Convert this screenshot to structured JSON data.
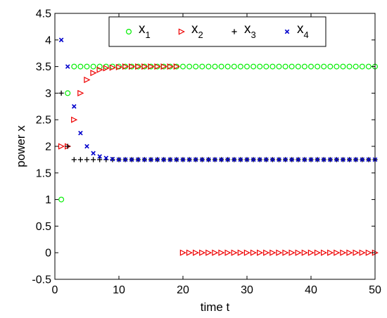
{
  "chart_data": {
    "type": "scatter",
    "xlabel": "time t",
    "ylabel": "power x",
    "xlim": [
      0,
      50
    ],
    "ylim": [
      -0.5,
      4.5
    ],
    "xticks": [
      0,
      10,
      20,
      30,
      40,
      50
    ],
    "yticks": [
      -0.5,
      0,
      0.5,
      1,
      1.5,
      2,
      2.5,
      3,
      3.5,
      4,
      4.5
    ],
    "grid": false,
    "legend_position": "top",
    "series": [
      {
        "name": "x",
        "subscript": "1",
        "marker": "circle",
        "color": "#00ee00",
        "x": [
          1,
          2,
          3,
          4,
          5,
          6,
          7,
          8,
          9,
          10,
          11,
          12,
          13,
          14,
          15,
          16,
          17,
          18,
          19,
          20,
          21,
          22,
          23,
          24,
          25,
          26,
          27,
          28,
          29,
          30,
          31,
          32,
          33,
          34,
          35,
          36,
          37,
          38,
          39,
          40,
          41,
          42,
          43,
          44,
          45,
          46,
          47,
          48,
          49,
          50
        ],
        "y": [
          1,
          3,
          3.5,
          3.5,
          3.5,
          3.5,
          3.5,
          3.5,
          3.5,
          3.5,
          3.5,
          3.5,
          3.5,
          3.5,
          3.5,
          3.5,
          3.5,
          3.5,
          3.5,
          3.5,
          3.5,
          3.5,
          3.5,
          3.5,
          3.5,
          3.5,
          3.5,
          3.5,
          3.5,
          3.5,
          3.5,
          3.5,
          3.5,
          3.5,
          3.5,
          3.5,
          3.5,
          3.5,
          3.5,
          3.5,
          3.5,
          3.5,
          3.5,
          3.5,
          3.5,
          3.5,
          3.5,
          3.5,
          3.5,
          3.5
        ]
      },
      {
        "name": "x",
        "subscript": "2",
        "marker": "triangle-right",
        "color": "#ee0000",
        "x": [
          1,
          2,
          3,
          4,
          5,
          6,
          7,
          8,
          9,
          10,
          11,
          12,
          13,
          14,
          15,
          16,
          17,
          18,
          19,
          20,
          21,
          22,
          23,
          24,
          25,
          26,
          27,
          28,
          29,
          30,
          31,
          32,
          33,
          34,
          35,
          36,
          37,
          38,
          39,
          40,
          41,
          42,
          43,
          44,
          45,
          46,
          47,
          48,
          49,
          50
        ],
        "y": [
          2,
          2,
          2.5,
          3,
          3.25,
          3.38,
          3.44,
          3.47,
          3.48,
          3.49,
          3.5,
          3.5,
          3.5,
          3.5,
          3.5,
          3.5,
          3.5,
          3.5,
          3.5,
          0,
          0,
          0,
          0,
          0,
          0,
          0,
          0,
          0,
          0,
          0,
          0,
          0,
          0,
          0,
          0,
          0,
          0,
          0,
          0,
          0,
          0,
          0,
          0,
          0,
          0,
          0,
          0,
          0,
          0,
          0
        ]
      },
      {
        "name": "x",
        "subscript": "3",
        "marker": "plus",
        "color": "#000000",
        "x": [
          1,
          2,
          3,
          4,
          5,
          6,
          7,
          8,
          9,
          10,
          11,
          12,
          13,
          14,
          15,
          16,
          17,
          18,
          19,
          20,
          21,
          22,
          23,
          24,
          25,
          26,
          27,
          28,
          29,
          30,
          31,
          32,
          33,
          34,
          35,
          36,
          37,
          38,
          39,
          40,
          41,
          42,
          43,
          44,
          45,
          46,
          47,
          48,
          49,
          50
        ],
        "y": [
          3,
          2,
          1.75,
          1.75,
          1.75,
          1.75,
          1.75,
          1.75,
          1.75,
          1.75,
          1.75,
          1.75,
          1.75,
          1.75,
          1.75,
          1.75,
          1.75,
          1.75,
          1.75,
          1.75,
          1.75,
          1.75,
          1.75,
          1.75,
          1.75,
          1.75,
          1.75,
          1.75,
          1.75,
          1.75,
          1.75,
          1.75,
          1.75,
          1.75,
          1.75,
          1.75,
          1.75,
          1.75,
          1.75,
          1.75,
          1.75,
          1.75,
          1.75,
          1.75,
          1.75,
          1.75,
          1.75,
          1.75,
          1.75,
          1.75
        ]
      },
      {
        "name": "x",
        "subscript": "4",
        "marker": "x",
        "color": "#0000cc",
        "x": [
          1,
          2,
          3,
          4,
          5,
          6,
          7,
          8,
          9,
          10,
          11,
          12,
          13,
          14,
          15,
          16,
          17,
          18,
          19,
          20,
          21,
          22,
          23,
          24,
          25,
          26,
          27,
          28,
          29,
          30,
          31,
          32,
          33,
          34,
          35,
          36,
          37,
          38,
          39,
          40,
          41,
          42,
          43,
          44,
          45,
          46,
          47,
          48,
          49,
          50
        ],
        "y": [
          4,
          3.5,
          2.75,
          2.25,
          2,
          1.87,
          1.81,
          1.78,
          1.76,
          1.75,
          1.75,
          1.75,
          1.75,
          1.75,
          1.75,
          1.75,
          1.75,
          1.75,
          1.75,
          1.75,
          1.75,
          1.75,
          1.75,
          1.75,
          1.75,
          1.75,
          1.75,
          1.75,
          1.75,
          1.75,
          1.75,
          1.75,
          1.75,
          1.75,
          1.75,
          1.75,
          1.75,
          1.75,
          1.75,
          1.75,
          1.75,
          1.75,
          1.75,
          1.75,
          1.75,
          1.75,
          1.75,
          1.75,
          1.75,
          1.75
        ]
      }
    ]
  }
}
